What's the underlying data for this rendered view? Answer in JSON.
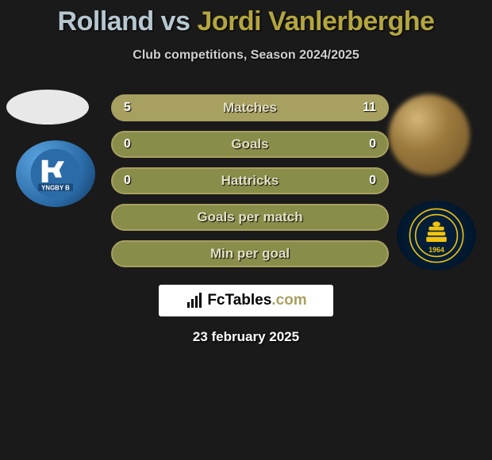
{
  "title": {
    "player1": "Rolland",
    "vs": "vs",
    "player2": "Jordi Vanlerberghe",
    "player1_color": "#b6c7d0",
    "player2_color": "#b4a63f"
  },
  "subtitle": "Club competitions, Season 2024/2025",
  "bars": {
    "base_color": "#888d4a",
    "border_color": "#a8a060",
    "p1_fill_color": "#a8a060",
    "p2_fill_color": "#a8a060",
    "label_color": "#e4e0c4",
    "items": [
      {
        "label": "Matches",
        "left": "5",
        "right": "11",
        "left_pct": 31,
        "right_pct": 69
      },
      {
        "label": "Goals",
        "left": "0",
        "right": "0",
        "left_pct": 0,
        "right_pct": 0
      },
      {
        "label": "Hattricks",
        "left": "0",
        "right": "0",
        "left_pct": 0,
        "right_pct": 0
      },
      {
        "label": "Goals per match",
        "left": "",
        "right": "",
        "left_pct": 0,
        "right_pct": 0
      },
      {
        "label": "Min per goal",
        "left": "",
        "right": "",
        "left_pct": 0,
        "right_pct": 0
      }
    ]
  },
  "club_left": {
    "name": "Lyngby",
    "badge_text": "YNGBY B",
    "primary_color": "#2b6ca8",
    "accent_color": "#ffffff"
  },
  "club_right": {
    "name": "Brondby",
    "badge_year": "1964",
    "primary_color": "#041e3a",
    "accent_color": "#f1c40f"
  },
  "logo": {
    "text_prefix": "FcTables",
    "text_suffix": ".com",
    "prefix_color": "#000000",
    "suffix_color": "#a8a060",
    "icon_color": "#000000"
  },
  "date": "23 february 2025",
  "background_color": "#1a1a1a"
}
